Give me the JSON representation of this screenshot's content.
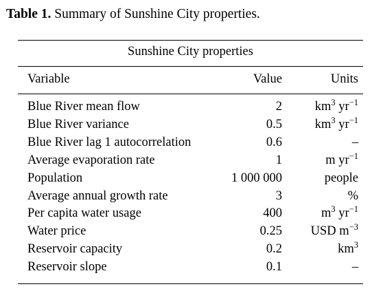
{
  "caption": {
    "label": "Table 1.",
    "text": "Summary of Sunshine City properties."
  },
  "table": {
    "group_title": "Sunshine City properties",
    "headers": {
      "variable": "Variable",
      "value": "Value",
      "units": "Units"
    },
    "rows": [
      {
        "variable": "Blue River mean flow",
        "value": "2",
        "unit_base": "km",
        "unit_base_sup": "3",
        "unit_rest": " yr",
        "unit_rest_sup": "−1"
      },
      {
        "variable": "Blue River variance",
        "value": "0.5",
        "unit_base": "km",
        "unit_base_sup": "3",
        "unit_rest": " yr",
        "unit_rest_sup": "−1"
      },
      {
        "variable": "Blue River lag 1 autocorrelation",
        "value": "0.6",
        "unit_base": "–",
        "unit_base_sup": "",
        "unit_rest": "",
        "unit_rest_sup": ""
      },
      {
        "variable": "Average evaporation rate",
        "value": "1",
        "unit_base": "m yr",
        "unit_base_sup": "",
        "unit_rest": "",
        "unit_rest_sup": "−1"
      },
      {
        "variable": "Population",
        "value": "1 000 000",
        "unit_base": "people",
        "unit_base_sup": "",
        "unit_rest": "",
        "unit_rest_sup": ""
      },
      {
        "variable": "Average annual growth rate",
        "value": "3",
        "unit_base": "%",
        "unit_base_sup": "",
        "unit_rest": "",
        "unit_rest_sup": ""
      },
      {
        "variable": "Per capita water usage",
        "value": "400",
        "unit_base": "m",
        "unit_base_sup": "3",
        "unit_rest": " yr",
        "unit_rest_sup": "−1"
      },
      {
        "variable": "Water price",
        "value": "0.25",
        "unit_base": "USD m",
        "unit_base_sup": "",
        "unit_rest": "",
        "unit_rest_sup": "−3"
      },
      {
        "variable": "Reservoir capacity",
        "value": "0.2",
        "unit_base": "km",
        "unit_base_sup": "3",
        "unit_rest": "",
        "unit_rest_sup": ""
      },
      {
        "variable": "Reservoir slope",
        "value": "0.1",
        "unit_base": "–",
        "unit_base_sup": "",
        "unit_rest": "",
        "unit_rest_sup": ""
      }
    ]
  }
}
